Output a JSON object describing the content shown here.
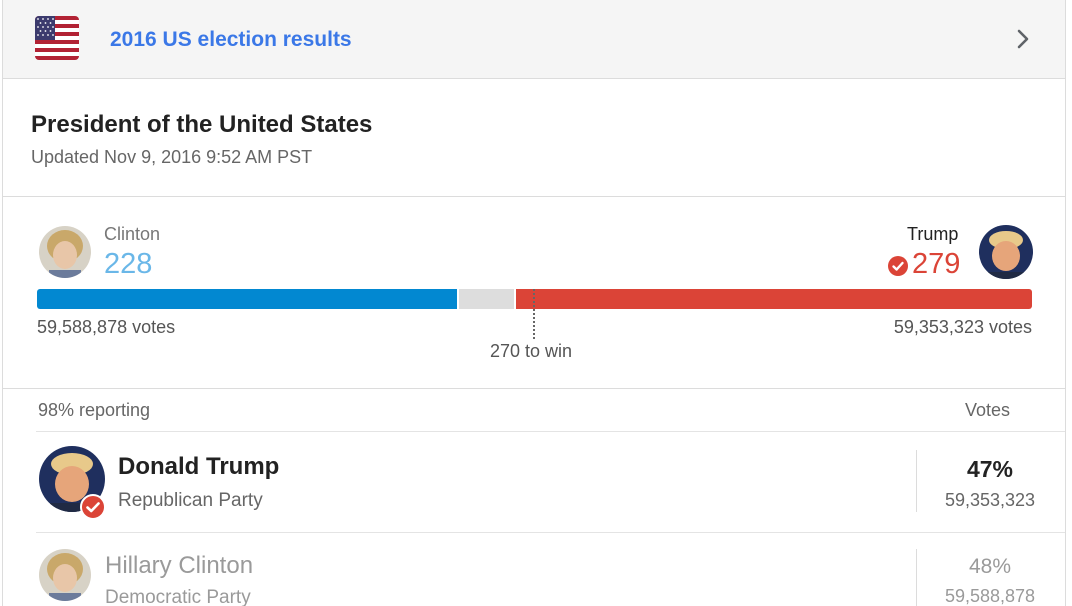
{
  "header": {
    "title": "2016 US election results"
  },
  "race": {
    "title": "President of the United States",
    "updated": "Updated Nov 9, 2016 9:52 AM PST"
  },
  "summary": {
    "left": {
      "name": "Clinton",
      "electoral_votes": "228",
      "popular_votes": "59,588,878 votes",
      "color": "#0288d1"
    },
    "right": {
      "name": "Trump",
      "electoral_votes": "279",
      "popular_votes": "59,353,323 votes",
      "color": "#db4437",
      "winner": true
    },
    "threshold_label": "270 to win",
    "threshold": 270,
    "total_electoral": 538,
    "undecided_color": "#dddddd"
  },
  "table": {
    "reporting": "98% reporting",
    "votes_header": "Votes",
    "rows": [
      {
        "name": "Donald Trump",
        "party": "Republican Party",
        "percent": "47%",
        "votes": "59,353,323",
        "winner": true
      },
      {
        "name": "Hillary Clinton",
        "party": "Democratic Party",
        "percent": "48%",
        "votes": "59,588,878",
        "winner": false
      }
    ]
  },
  "icons": {
    "flag": "us-flag-icon",
    "chevron": "chevron-right-icon",
    "check": "check-circle-icon"
  }
}
